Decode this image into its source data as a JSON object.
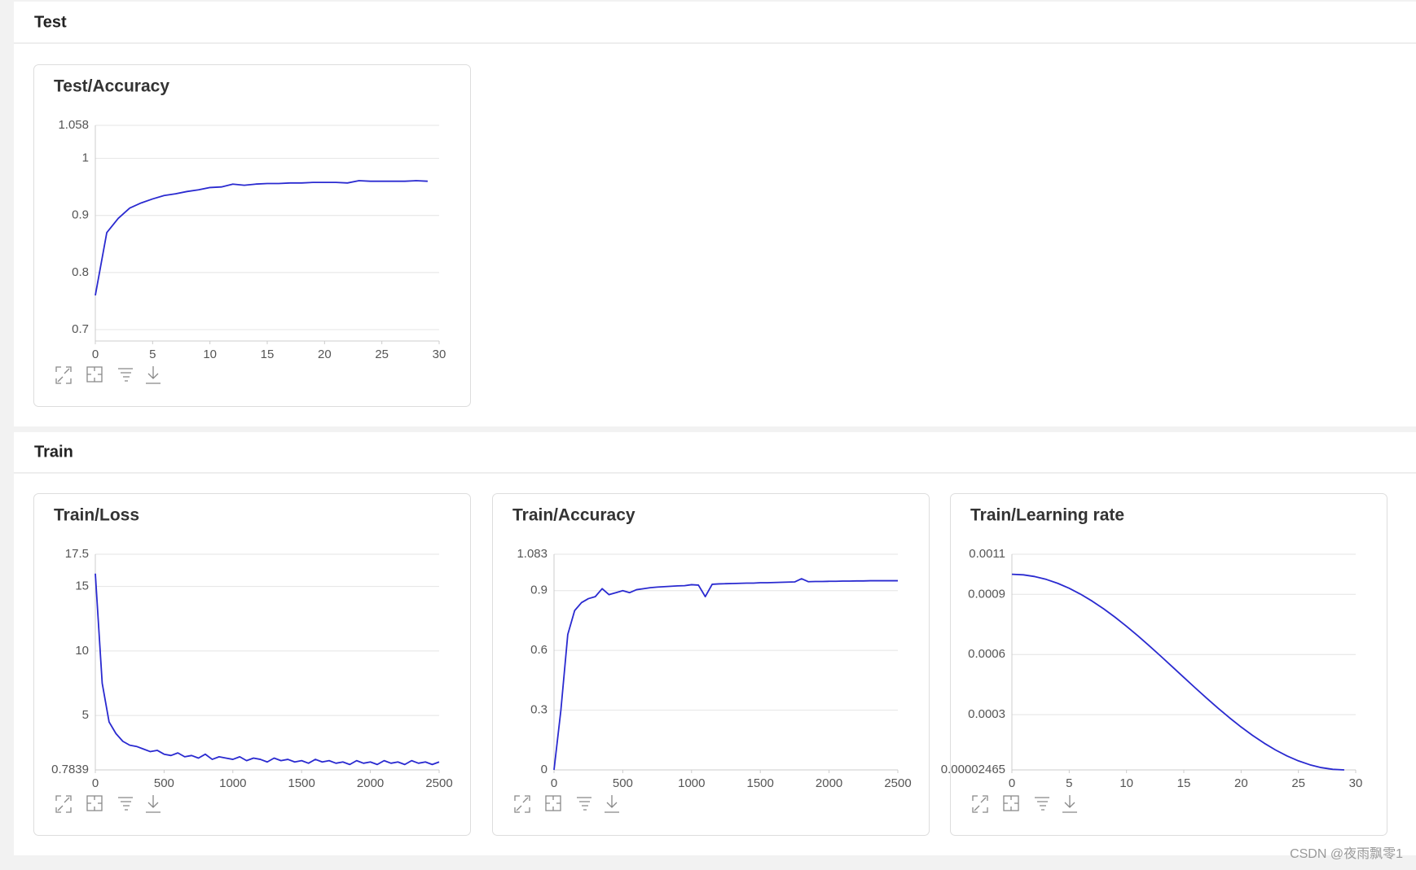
{
  "sections": [
    {
      "title": "Test"
    },
    {
      "title": "Train"
    }
  ],
  "watermark": "CSDN @夜雨飘零1",
  "chart_data": [
    {
      "type": "line",
      "title": "Test/Accuracy",
      "color": "#2a2ad0",
      "grid": true,
      "x": [
        0,
        1,
        2,
        3,
        4,
        5,
        6,
        7,
        8,
        9,
        10,
        11,
        12,
        13,
        14,
        15,
        16,
        17,
        18,
        19,
        20,
        21,
        22,
        23,
        24,
        25,
        26,
        27,
        28,
        29
      ],
      "values": [
        0.76,
        0.87,
        0.895,
        0.913,
        0.922,
        0.929,
        0.935,
        0.938,
        0.942,
        0.945,
        0.949,
        0.95,
        0.955,
        0.953,
        0.955,
        0.956,
        0.956,
        0.957,
        0.957,
        0.958,
        0.958,
        0.958,
        0.957,
        0.961,
        0.96,
        0.96,
        0.96,
        0.96,
        0.961,
        0.96
      ],
      "xlim": [
        0,
        30
      ],
      "xticks": [
        0,
        5,
        10,
        15,
        20,
        25,
        30
      ],
      "ylim": [
        0.68,
        1.058
      ],
      "yticks": [
        0.7,
        0.8,
        0.9,
        1,
        1.058
      ]
    },
    {
      "type": "line",
      "title": "Train/Loss",
      "color": "#2a2ad0",
      "grid": true,
      "x": [
        0,
        50,
        100,
        150,
        200,
        250,
        300,
        350,
        400,
        450,
        500,
        550,
        600,
        650,
        700,
        750,
        800,
        850,
        900,
        950,
        1000,
        1050,
        1100,
        1150,
        1200,
        1250,
        1300,
        1350,
        1400,
        1450,
        1500,
        1550,
        1600,
        1650,
        1700,
        1750,
        1800,
        1850,
        1900,
        1950,
        2000,
        2050,
        2100,
        2150,
        2200,
        2250,
        2300,
        2350,
        2400,
        2450,
        2500
      ],
      "values": [
        16,
        7.5,
        4.5,
        3.6,
        3.0,
        2.7,
        2.6,
        2.4,
        2.2,
        2.3,
        2.0,
        1.9,
        2.1,
        1.8,
        1.9,
        1.7,
        2.0,
        1.6,
        1.8,
        1.7,
        1.6,
        1.8,
        1.5,
        1.7,
        1.6,
        1.4,
        1.7,
        1.5,
        1.6,
        1.4,
        1.5,
        1.3,
        1.6,
        1.4,
        1.5,
        1.3,
        1.4,
        1.2,
        1.5,
        1.3,
        1.4,
        1.2,
        1.5,
        1.3,
        1.4,
        1.2,
        1.5,
        1.3,
        1.4,
        1.2,
        1.4
      ],
      "xlim": [
        0,
        2500
      ],
      "xticks": [
        0,
        500,
        1000,
        1500,
        2000,
        2500
      ],
      "ylim": [
        0.7839,
        17.5
      ],
      "yticks": [
        0.7839,
        5,
        10,
        15,
        17.5
      ]
    },
    {
      "type": "line",
      "title": "Train/Accuracy",
      "color": "#2a2ad0",
      "grid": true,
      "x": [
        0,
        50,
        100,
        150,
        200,
        250,
        300,
        350,
        400,
        450,
        500,
        550,
        600,
        650,
        700,
        750,
        800,
        850,
        900,
        950,
        1000,
        1050,
        1100,
        1150,
        1200,
        1250,
        1300,
        1350,
        1400,
        1450,
        1500,
        1550,
        1600,
        1650,
        1700,
        1750,
        1800,
        1850,
        1900,
        1950,
        2000,
        2050,
        2100,
        2150,
        2200,
        2250,
        2300,
        2350,
        2400,
        2450,
        2500
      ],
      "values": [
        0,
        0.3,
        0.68,
        0.8,
        0.84,
        0.86,
        0.87,
        0.91,
        0.88,
        0.89,
        0.9,
        0.89,
        0.905,
        0.91,
        0.915,
        0.918,
        0.92,
        0.922,
        0.924,
        0.925,
        0.93,
        0.928,
        0.87,
        0.932,
        0.934,
        0.935,
        0.936,
        0.937,
        0.938,
        0.938,
        0.94,
        0.94,
        0.941,
        0.942,
        0.943,
        0.944,
        0.96,
        0.945,
        0.946,
        0.946,
        0.947,
        0.947,
        0.948,
        0.948,
        0.949,
        0.949,
        0.95,
        0.95,
        0.95,
        0.95,
        0.95
      ],
      "xlim": [
        0,
        2500
      ],
      "xticks": [
        0,
        500,
        1000,
        1500,
        2000,
        2500
      ],
      "ylim": [
        0,
        1.083
      ],
      "yticks": [
        0,
        0.3,
        0.6,
        0.9,
        1.083
      ]
    },
    {
      "type": "line",
      "title": "Train/Learning rate",
      "color": "#2a2ad0",
      "grid": true,
      "x": [
        0,
        1,
        2,
        3,
        4,
        5,
        6,
        7,
        8,
        9,
        10,
        11,
        12,
        13,
        14,
        15,
        16,
        17,
        18,
        19,
        20,
        21,
        22,
        23,
        24,
        25,
        26,
        27,
        28,
        29
      ],
      "values": [
        0.001,
        0.0009973,
        0.0009886,
        0.0009745,
        0.0009549,
        0.0009302,
        0.0009006,
        0.0008664,
        0.0008281,
        0.000786,
        0.0007408,
        0.0006928,
        0.0006428,
        0.0005912,
        0.0005387,
        0.0004859,
        0.0004334,
        0.0003819,
        0.0003318,
        0.0002839,
        0.0002386,
        0.0001966,
        0.0001583,
        0.0001241,
        9.45e-05,
        6.97e-05,
        5.02e-05,
        3.6e-05,
        2.75e-05,
        2.465e-05
      ],
      "xlim": [
        0,
        30
      ],
      "xticks": [
        0,
        5,
        10,
        15,
        20,
        25,
        30
      ],
      "ylim": [
        2.465e-05,
        0.0011
      ],
      "yticks": [
        2.465e-05,
        0.0003,
        0.0006,
        0.0009,
        0.0011
      ]
    }
  ]
}
